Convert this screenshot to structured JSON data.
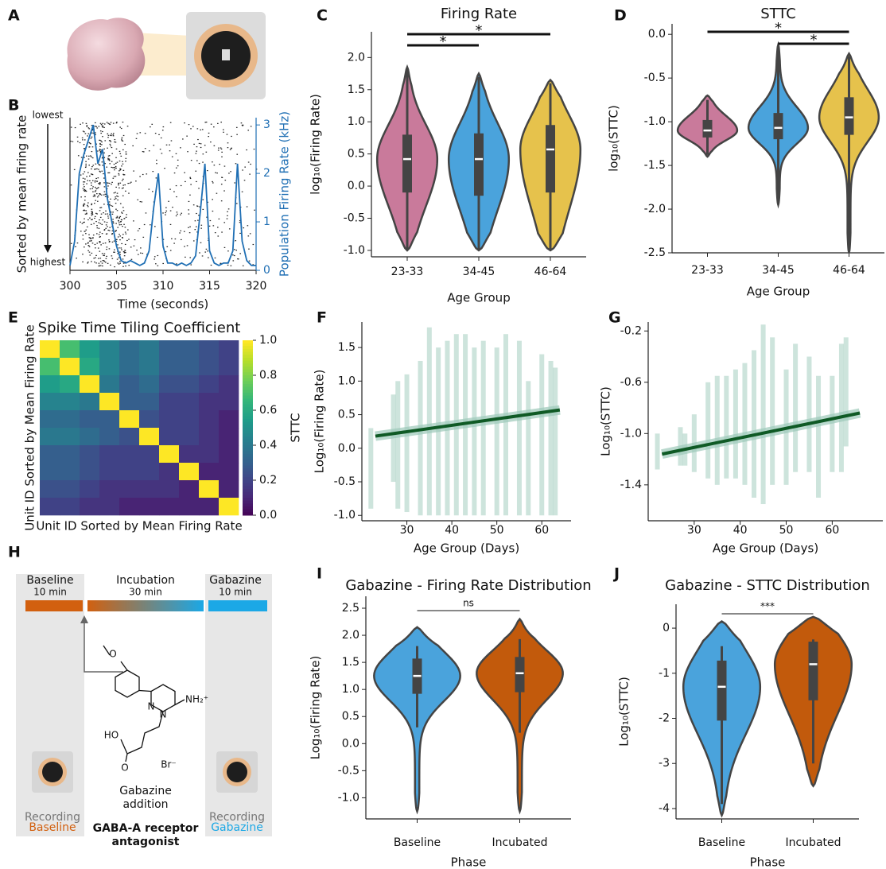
{
  "panel_a": {
    "panel": "A"
  },
  "panel_h": {
    "panel": "H",
    "phases": [
      {
        "name": "Baseline",
        "duration": "10 min"
      },
      {
        "name": "Incubation",
        "duration": "30 min"
      },
      {
        "name": "Gabazine",
        "duration": "10 min"
      }
    ],
    "drug_label": [
      "Gabazine",
      "addition"
    ],
    "drug_class": [
      "GABA-A receptor",
      "antagonist"
    ],
    "recording_left": [
      "Recording",
      "Baseline"
    ],
    "recording_right": [
      "Recording",
      "Gabazine"
    ],
    "structure_labels": [
      "O",
      "N",
      "N",
      "NH₂⁺",
      "HO",
      "O",
      "Br⁻"
    ]
  },
  "chart_data": [
    {
      "type": "raster_line",
      "panel": "B",
      "xlabel": "Time (seconds)",
      "ylabel": "Sorted by mean firing rate",
      "top_label": "lowest",
      "bottom_label": "highest",
      "y2label": "Population Firing Rate (kHz)",
      "xlim": [
        300,
        320
      ],
      "xticks": [
        300,
        305,
        310,
        315,
        320
      ],
      "y2lim": [
        0,
        3.15
      ],
      "y2ticks": [
        0,
        1,
        2,
        3
      ],
      "x": [
        300,
        300.5,
        301,
        301.5,
        302,
        302.5,
        303,
        303.5,
        304,
        304.5,
        305,
        305.5,
        306,
        306.5,
        307,
        307.5,
        308,
        308.5,
        309,
        309.5,
        310,
        310.5,
        311,
        311.5,
        312,
        312.5,
        313,
        313.5,
        314,
        314.5,
        315,
        315.5,
        316,
        316.5,
        317,
        317.5,
        318,
        318.5,
        319,
        319.5,
        320
      ],
      "series": [
        {
          "color": "#1f6fb4",
          "axis": "y2",
          "values": [
            0.1,
            0.6,
            2.0,
            2.4,
            2.7,
            3.0,
            2.2,
            2.5,
            1.5,
            1.0,
            0.5,
            0.2,
            0.15,
            0.2,
            0.15,
            0.1,
            0.15,
            0.4,
            1.3,
            2.0,
            0.5,
            0.15,
            0.15,
            0.1,
            0.15,
            0.1,
            0.15,
            0.3,
            1.2,
            2.2,
            0.4,
            0.15,
            0.1,
            0.15,
            0.15,
            0.4,
            2.2,
            0.6,
            0.2,
            0.1,
            0.1
          ]
        }
      ]
    },
    {
      "type": "violin",
      "panel": "C",
      "title": "Firing Rate",
      "xlabel": "Age Group",
      "ylabel": "log₁₀(Firing Rate)",
      "categories": [
        "23-33",
        "34-45",
        "46-64"
      ],
      "colors": [
        "#c97a9b",
        "#4aa3dc",
        "#e6c24c"
      ],
      "ylim": [
        -1.1,
        2.4
      ],
      "yticks": [
        {
          "value": -1,
          "label": "-1.0"
        },
        -0.5,
        {
          "value": 0,
          "label": "0.0"
        },
        0.5,
        {
          "value": 1,
          "label": "1.0"
        },
        1.5,
        {
          "value": 2,
          "label": "2.0"
        }
      ],
      "stats": {
        "min": [
          -1.0,
          -1.0,
          -1.0
        ],
        "q1": [
          -0.1,
          -0.15,
          -0.1
        ],
        "median": [
          0.42,
          0.42,
          0.57
        ],
        "q3": [
          0.8,
          0.82,
          0.95
        ],
        "max": [
          1.85,
          1.75,
          1.65
        ],
        "whisker_low": [
          -1.0,
          -1.0,
          -1.0
        ],
        "whisker_high": [
          1.8,
          1.7,
          1.6
        ]
      },
      "significance": [
        {
          "text": "*",
          "from": 0,
          "to": 2
        },
        {
          "text": "*",
          "from": 0,
          "to": 1
        }
      ]
    },
    {
      "type": "violin",
      "panel": "D",
      "title": "STTC",
      "xlabel": "Age Group",
      "ylabel": "log₁₀(STTC)",
      "categories": [
        "23-33",
        "34-45",
        "46-64"
      ],
      "colors": [
        "#c97a9b",
        "#4aa3dc",
        "#e6c24c"
      ],
      "ylim": [
        -2.5,
        0.12
      ],
      "yticks": [
        -2.5,
        {
          "value": -2,
          "label": "-2.0"
        },
        -1.5,
        {
          "value": -1,
          "label": "-1.0"
        },
        -0.5,
        {
          "value": 0,
          "label": "0.0"
        }
      ],
      "stats": {
        "min": [
          -1.4,
          -1.95,
          -2.5
        ],
        "q1": [
          -1.18,
          -1.2,
          -1.15
        ],
        "median": [
          -1.1,
          -1.07,
          -0.95
        ],
        "q3": [
          -0.98,
          -0.9,
          -0.72
        ],
        "max": [
          -0.7,
          -0.12,
          -0.22
        ],
        "whisker_low": [
          -1.38,
          -1.95,
          -2.5
        ],
        "whisker_high": [
          -0.75,
          -0.15,
          -0.25
        ]
      },
      "significance": [
        {
          "text": "*",
          "from": 0,
          "to": 2
        },
        {
          "text": "*",
          "from": 1,
          "to": 2
        }
      ]
    },
    {
      "type": "heatmap",
      "panel": "E",
      "title": "Spike Time Tiling Coefficient",
      "xlabel": "Unit ID Sorted by Mean Firing Rate",
      "ylabel": "Unit ID Sorted by Mean Firing Rate",
      "colorbar_label": "STTC",
      "clim": [
        0,
        1
      ],
      "cticks": [
        {
          "value": 0,
          "label": "0.0"
        },
        0.2,
        0.4,
        0.6,
        0.8,
        {
          "value": 1,
          "label": "1.0"
        }
      ],
      "matrix": [
        [
          1.0,
          0.7,
          0.55,
          0.45,
          0.35,
          0.4,
          0.3,
          0.3,
          0.25,
          0.2
        ],
        [
          0.7,
          1.0,
          0.6,
          0.45,
          0.35,
          0.4,
          0.3,
          0.3,
          0.25,
          0.2
        ],
        [
          0.55,
          0.6,
          1.0,
          0.4,
          0.3,
          0.35,
          0.25,
          0.25,
          0.2,
          0.15
        ],
        [
          0.45,
          0.45,
          0.4,
          1.0,
          0.3,
          0.3,
          0.2,
          0.2,
          0.15,
          0.15
        ],
        [
          0.35,
          0.35,
          0.3,
          0.3,
          1.0,
          0.25,
          0.2,
          0.2,
          0.15,
          0.1
        ],
        [
          0.4,
          0.4,
          0.35,
          0.3,
          0.25,
          1.0,
          0.2,
          0.2,
          0.15,
          0.1
        ],
        [
          0.3,
          0.3,
          0.25,
          0.2,
          0.2,
          0.2,
          1.0,
          0.15,
          0.15,
          0.1
        ],
        [
          0.3,
          0.3,
          0.25,
          0.2,
          0.2,
          0.2,
          0.15,
          1.0,
          0.1,
          0.1
        ],
        [
          0.25,
          0.25,
          0.2,
          0.15,
          0.15,
          0.15,
          0.15,
          0.1,
          1.0,
          0.1
        ],
        [
          0.2,
          0.2,
          0.15,
          0.15,
          0.1,
          0.1,
          0.1,
          0.1,
          0.1,
          1.0
        ]
      ]
    },
    {
      "type": "strip_fit",
      "panel": "F",
      "xlabel": "Age Group (Days)",
      "ylabel": "Log₁₀(Firing Rate)",
      "color": "#9cc9b9",
      "fit_color": "#0f5a25",
      "xlim": [
        20,
        66.5
      ],
      "xticks": [
        30,
        40,
        50,
        60
      ],
      "ylim": [
        -1.08,
        1.88
      ],
      "yticks": [
        {
          "value": -1,
          "label": "-1.0"
        },
        -0.5,
        {
          "value": 0,
          "label": "0.0"
        },
        0.5,
        {
          "value": 1,
          "label": "1.0"
        },
        1.5
      ],
      "x": [
        22,
        27,
        28,
        30,
        33,
        35,
        37,
        39,
        41,
        43,
        45,
        47,
        50,
        52,
        55,
        57,
        60,
        62,
        63
      ],
      "low": [
        -0.9,
        -0.5,
        -0.9,
        -0.95,
        -1.0,
        -1.0,
        -1.0,
        -1.0,
        -1.0,
        -1.0,
        -1.0,
        -1.0,
        -1.0,
        -1.0,
        -1.0,
        -1.0,
        -1.0,
        -1.0,
        -1.0
      ],
      "high": [
        0.3,
        0.8,
        1.0,
        1.1,
        1.3,
        1.8,
        1.5,
        1.6,
        1.7,
        1.7,
        1.5,
        1.6,
        1.5,
        1.7,
        1.6,
        1.0,
        1.4,
        1.3,
        1.2
      ],
      "fit": {
        "x": [
          23,
          64
        ],
        "y": [
          0.18,
          0.57
        ]
      }
    },
    {
      "type": "strip_fit",
      "panel": "G",
      "xlabel": "Age Group (Days)",
      "ylabel": "Log₁₀(STTC)",
      "color": "#9cc9b9",
      "fit_color": "#0f5a25",
      "xlim": [
        20,
        71
      ],
      "xticks": [
        30,
        40,
        50,
        60
      ],
      "ylim": [
        -1.68,
        -0.13
      ],
      "yticks": [
        -1.4,
        {
          "value": -1,
          "label": "-1.0"
        },
        -0.6,
        -0.2
      ],
      "x": [
        22,
        27,
        28,
        30,
        33,
        35,
        37,
        39,
        41,
        43,
        45,
        47,
        50,
        52,
        55,
        57,
        60,
        62,
        63
      ],
      "low": [
        -1.28,
        -1.25,
        -1.25,
        -1.3,
        -1.35,
        -1.4,
        -1.35,
        -1.35,
        -1.4,
        -1.5,
        -1.55,
        -1.4,
        -1.4,
        -1.3,
        -1.3,
        -1.5,
        -1.3,
        -1.3,
        -1.1
      ],
      "high": [
        -1.0,
        -0.95,
        -1.0,
        -0.85,
        -0.6,
        -0.55,
        -0.55,
        -0.5,
        -0.45,
        -0.35,
        -0.15,
        -0.25,
        -0.5,
        -0.3,
        -0.4,
        -0.55,
        -0.55,
        -0.3,
        -0.25
      ],
      "fit": {
        "x": [
          23,
          66
        ],
        "y": [
          -1.16,
          -0.84
        ]
      }
    },
    {
      "type": "violin",
      "panel": "I",
      "title": "Gabazine - Firing Rate Distribution",
      "xlabel": "Phase",
      "ylabel": "Log₁₀(Firing Rate)",
      "categories": [
        "Baseline",
        "Incubated"
      ],
      "colors": [
        "#4aa3dc",
        "#c25a0c"
      ],
      "ylim": [
        -1.39,
        2.72
      ],
      "yticks": [
        {
          "value": -1,
          "label": "-1.0"
        },
        -0.5,
        {
          "value": 0,
          "label": "0.0"
        },
        0.5,
        {
          "value": 1,
          "label": "1.0"
        },
        1.5,
        {
          "value": 2,
          "label": "2.0"
        },
        2.5
      ],
      "stats": {
        "min": [
          -1.25,
          -1.25
        ],
        "q1": [
          0.92,
          0.95
        ],
        "median": [
          1.25,
          1.3
        ],
        "q3": [
          1.57,
          1.6
        ],
        "max": [
          2.15,
          2.3
        ],
        "whisker_low": [
          0.3,
          0.2
        ],
        "whisker_high": [
          1.8,
          1.93
        ]
      },
      "significance": [
        {
          "text": "ns",
          "from": 0,
          "to": 1
        }
      ]
    },
    {
      "type": "violin",
      "panel": "J",
      "title": "Gabazine - STTC Distribution",
      "xlabel": "Phase",
      "ylabel": "Log₁₀(STTC)",
      "categories": [
        "Baseline",
        "Incubated"
      ],
      "colors": [
        "#4aa3dc",
        "#c25a0c"
      ],
      "ylim": [
        -4.23,
        0.53
      ],
      "yticks": [
        -4,
        -3,
        -2,
        -1,
        0
      ],
      "stats": {
        "min": [
          -4.15,
          -3.5
        ],
        "q1": [
          -2.05,
          -1.6
        ],
        "median": [
          -1.3,
          -0.8
        ],
        "q3": [
          -0.72,
          -0.3
        ],
        "max": [
          0.15,
          0.25
        ],
        "whisker_low": [
          -3.9,
          -3.0
        ],
        "whisker_high": [
          -0.4,
          -0.25
        ]
      },
      "significance": [
        {
          "text": "***",
          "from": 0,
          "to": 1
        }
      ]
    }
  ]
}
